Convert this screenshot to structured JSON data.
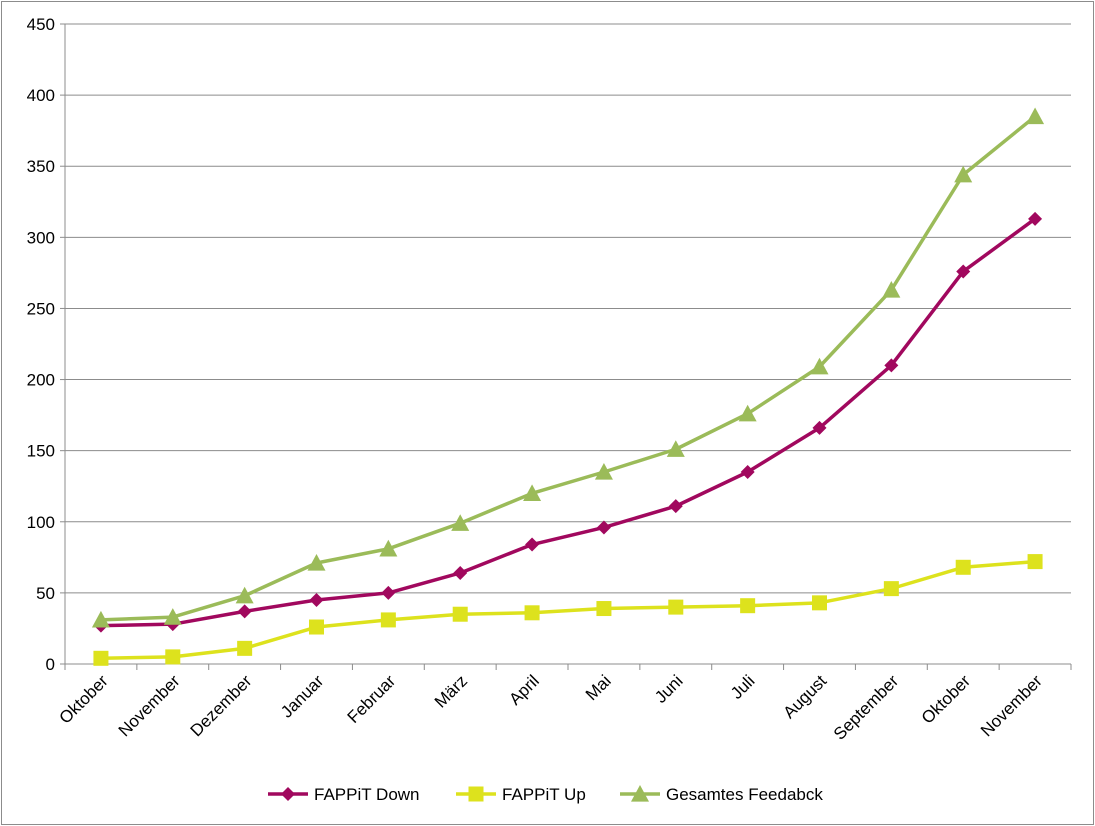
{
  "chart_data": {
    "type": "line",
    "categories": [
      "Oktober",
      "November",
      "Dezember",
      "Januar",
      "Februar",
      "März",
      "April",
      "Mai",
      "Juni",
      "Juli",
      "August",
      "September",
      "Oktober",
      "November"
    ],
    "series": [
      {
        "name": "FAPPiT Down",
        "color": "#a1085e",
        "marker": "diamond",
        "values": [
          27,
          28,
          37,
          45,
          50,
          64,
          84,
          96,
          111,
          135,
          166,
          210,
          276,
          313
        ]
      },
      {
        "name": "FAPPiT Up",
        "color": "#dde21d",
        "marker": "square",
        "values": [
          4,
          5,
          11,
          26,
          31,
          35,
          36,
          39,
          40,
          41,
          43,
          53,
          68,
          72
        ]
      },
      {
        "name": "Gesamtes Feedabck",
        "color": "#9bbb59",
        "marker": "triangle",
        "values": [
          31,
          33,
          48,
          71,
          81,
          99,
          120,
          135,
          151,
          176,
          209,
          263,
          344,
          385
        ]
      }
    ],
    "ylim": [
      0,
      450
    ],
    "yticks": [
      0,
      50,
      100,
      150,
      200,
      250,
      300,
      350,
      400,
      450
    ],
    "grid": "horizontal",
    "legend": "bottom",
    "title": "",
    "xlabel": "",
    "ylabel": ""
  }
}
